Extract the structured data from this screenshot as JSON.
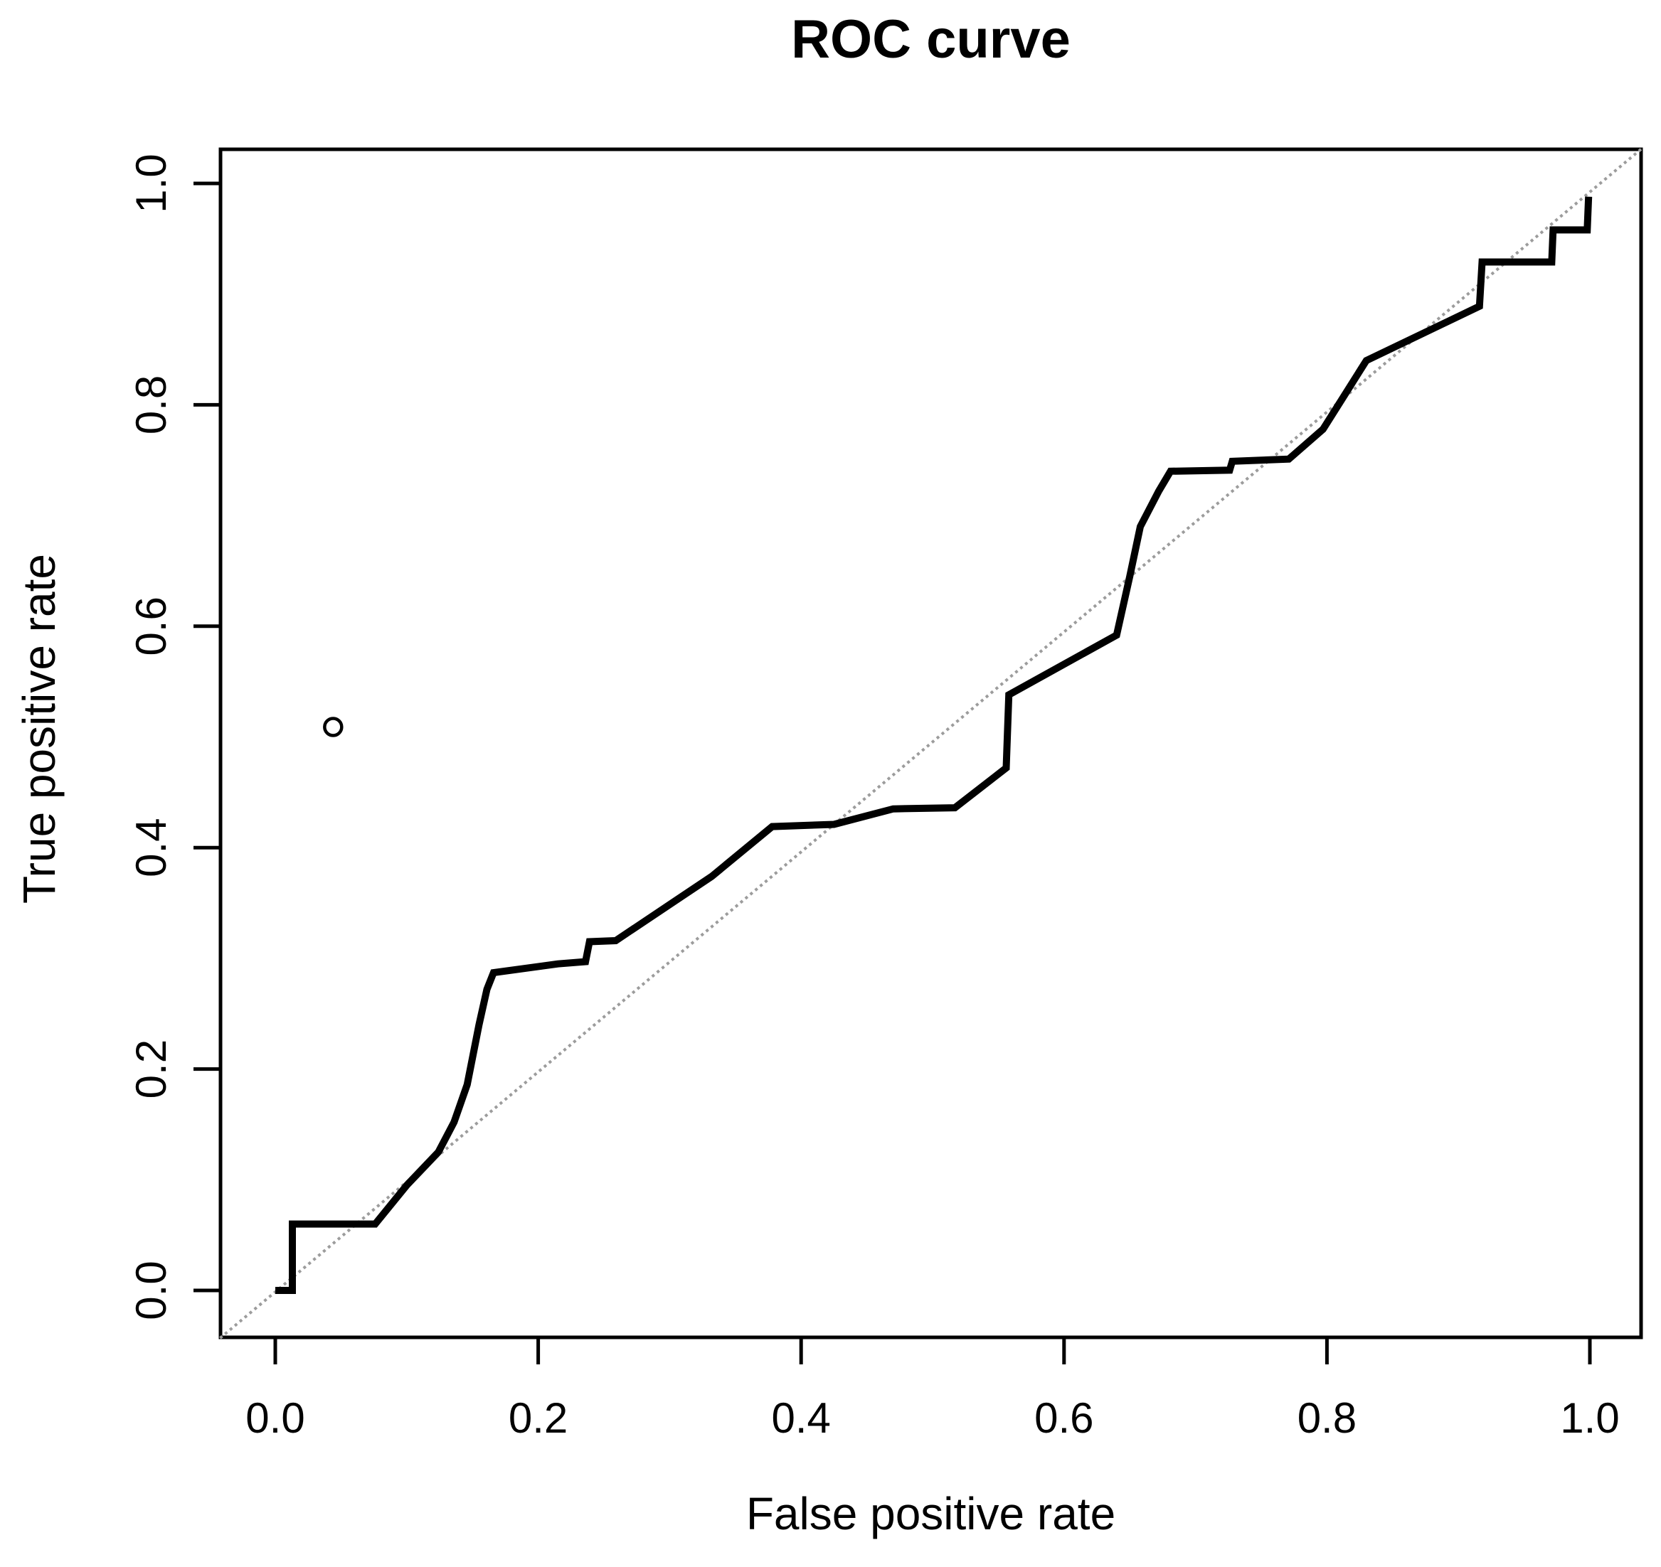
{
  "page": {
    "background": "#ffffff"
  },
  "chart_data": {
    "type": "line",
    "title": "ROC curve",
    "xlabel": "False positive rate",
    "ylabel": "True positive rate",
    "xlim": [
      -0.042,
      1.039
    ],
    "ylim": [
      -0.042,
      1.031
    ],
    "grid": false,
    "legend": "none",
    "axis_color": "#000000",
    "xticks": {
      "values": [
        0,
        0.2,
        0.4,
        0.6,
        0.8,
        1.0
      ],
      "labels": [
        "0.0",
        "0.2",
        "0.4",
        "0.6",
        "0.8",
        "1.0"
      ]
    },
    "yticks": {
      "values": [
        0,
        0.2,
        0.4,
        0.6,
        0.8,
        1.0
      ],
      "labels": [
        "0.0",
        "0.2",
        "0.4",
        "0.6",
        "0.8",
        "1.0"
      ]
    },
    "series": [
      {
        "name": "roc-curve",
        "color": "#000000",
        "stroke_width": 10,
        "dashed": false,
        "points": [
          [
            0.0,
            0.0
          ],
          [
            0.013,
            0.0
          ],
          [
            0.013,
            0.06
          ],
          [
            0.076,
            0.06
          ],
          [
            0.1,
            0.095
          ],
          [
            0.124,
            0.125
          ],
          [
            0.136,
            0.152
          ],
          [
            0.146,
            0.186
          ],
          [
            0.155,
            0.24
          ],
          [
            0.161,
            0.272
          ],
          [
            0.166,
            0.287
          ],
          [
            0.215,
            0.295
          ],
          [
            0.236,
            0.297
          ],
          [
            0.239,
            0.315
          ],
          [
            0.259,
            0.316
          ],
          [
            0.332,
            0.374
          ],
          [
            0.378,
            0.419
          ],
          [
            0.425,
            0.421
          ],
          [
            0.47,
            0.435
          ],
          [
            0.517,
            0.436
          ],
          [
            0.556,
            0.472
          ],
          [
            0.558,
            0.538
          ],
          [
            0.64,
            0.592
          ],
          [
            0.65,
            0.645
          ],
          [
            0.658,
            0.69
          ],
          [
            0.672,
            0.722
          ],
          [
            0.681,
            0.74
          ],
          [
            0.726,
            0.741
          ],
          [
            0.728,
            0.749
          ],
          [
            0.771,
            0.751
          ],
          [
            0.797,
            0.778
          ],
          [
            0.83,
            0.84
          ],
          [
            0.916,
            0.889
          ],
          [
            0.918,
            0.929
          ],
          [
            0.971,
            0.929
          ],
          [
            0.972,
            0.958
          ],
          [
            0.998,
            0.958
          ],
          [
            0.999,
            0.988
          ]
        ]
      },
      {
        "name": "chance-diagonal",
        "color": "#9c9c9c",
        "stroke_width": 4,
        "dashed": true,
        "points": [
          [
            -0.042,
            -0.043
          ],
          [
            1.039,
            1.031
          ]
        ]
      }
    ],
    "markers": [
      {
        "shape": "open-circle",
        "x": 0.044,
        "y": 0.509,
        "color": "#000000"
      }
    ]
  }
}
